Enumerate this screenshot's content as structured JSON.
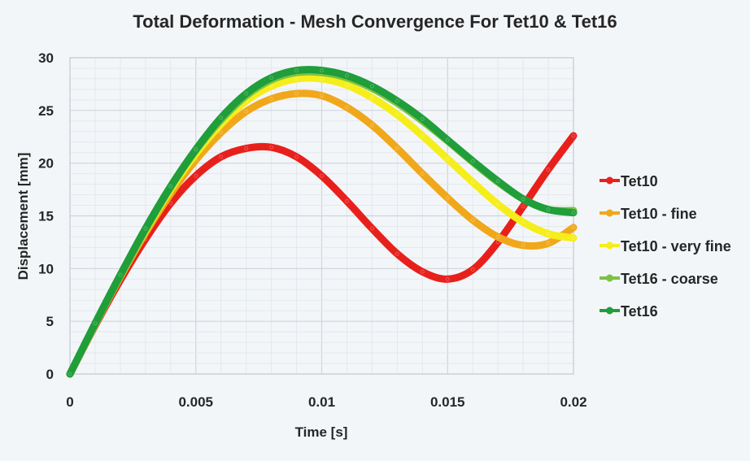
{
  "chart_data": {
    "type": "line",
    "title": "Total Deformation - Mesh Convergence For Tet10 & Tet16",
    "xlabel": "Time [s]",
    "ylabel": "Displacement [mm]",
    "xlim": [
      0,
      0.02
    ],
    "ylim": [
      0,
      30
    ],
    "xticks": [
      "0",
      "0.005",
      "0.01",
      "0.015",
      "0.02"
    ],
    "xtick_values": [
      0,
      0.005,
      0.01,
      0.015,
      0.02
    ],
    "yticks": [
      "0",
      "5",
      "10",
      "15",
      "20",
      "25",
      "30"
    ],
    "ytick_values": [
      0,
      5,
      10,
      15,
      20,
      25,
      30
    ],
    "grid": true,
    "legend_position": "right",
    "series": [
      {
        "name": "Tet10",
        "color": "#e8201c",
        "x": [
          0,
          0.001,
          0.002,
          0.003,
          0.004,
          0.005,
          0.006,
          0.007,
          0.008,
          0.009,
          0.01,
          0.011,
          0.012,
          0.013,
          0.014,
          0.015,
          0.016,
          0.017,
          0.018,
          0.019,
          0.02
        ],
        "y": [
          0,
          4.6,
          8.9,
          12.8,
          16.2,
          18.8,
          20.6,
          21.4,
          21.5,
          20.6,
          18.8,
          16.4,
          13.8,
          11.4,
          9.7,
          9.0,
          9.9,
          12.5,
          15.9,
          19.4,
          22.6
        ]
      },
      {
        "name": "Tet10 - fine",
        "color": "#f0a81a",
        "x": [
          0,
          0.001,
          0.002,
          0.003,
          0.004,
          0.005,
          0.006,
          0.007,
          0.008,
          0.009,
          0.01,
          0.011,
          0.012,
          0.013,
          0.014,
          0.015,
          0.016,
          0.017,
          0.018,
          0.019,
          0.02
        ],
        "y": [
          0,
          4.7,
          9.2,
          13.4,
          17.1,
          20.3,
          22.9,
          24.9,
          26.1,
          26.6,
          26.4,
          25.3,
          23.6,
          21.4,
          19.0,
          16.7,
          14.6,
          13.0,
          12.2,
          12.4,
          13.9
        ]
      },
      {
        "name": "Tet10 - very fine",
        "color": "#f5ee1a",
        "x": [
          0,
          0.001,
          0.002,
          0.003,
          0.004,
          0.005,
          0.006,
          0.007,
          0.008,
          0.009,
          0.01,
          0.011,
          0.012,
          0.013,
          0.014,
          0.015,
          0.016,
          0.017,
          0.018,
          0.019,
          0.02
        ],
        "y": [
          0,
          4.7,
          9.3,
          13.6,
          17.5,
          20.9,
          23.7,
          25.9,
          27.3,
          28.0,
          28.0,
          27.4,
          26.2,
          24.6,
          22.6,
          20.4,
          18.2,
          16.1,
          14.4,
          13.3,
          12.9
        ]
      },
      {
        "name": "Tet16 - coarse",
        "color": "#7cc242",
        "x": [
          0,
          0.001,
          0.002,
          0.003,
          0.004,
          0.005,
          0.006,
          0.007,
          0.008,
          0.009,
          0.01,
          0.011,
          0.012,
          0.013,
          0.014,
          0.015,
          0.016,
          0.017,
          0.018,
          0.019,
          0.02
        ],
        "y": [
          0,
          4.7,
          9.3,
          13.7,
          17.7,
          21.2,
          24.1,
          26.4,
          27.9,
          28.6,
          28.6,
          28.1,
          27.1,
          25.7,
          24.0,
          22.1,
          20.1,
          18.2,
          16.6,
          15.6,
          15.5
        ]
      },
      {
        "name": "Tet16",
        "color": "#1f9e3a",
        "x": [
          0,
          0.001,
          0.002,
          0.003,
          0.004,
          0.005,
          0.006,
          0.007,
          0.008,
          0.009,
          0.01,
          0.011,
          0.012,
          0.013,
          0.014,
          0.015,
          0.016,
          0.017,
          0.018,
          0.019,
          0.02
        ],
        "y": [
          0,
          4.8,
          9.4,
          13.8,
          17.8,
          21.3,
          24.3,
          26.6,
          28.1,
          28.8,
          28.8,
          28.3,
          27.3,
          25.9,
          24.2,
          22.2,
          20.2,
          18.3,
          16.6,
          15.6,
          15.3
        ]
      }
    ]
  }
}
